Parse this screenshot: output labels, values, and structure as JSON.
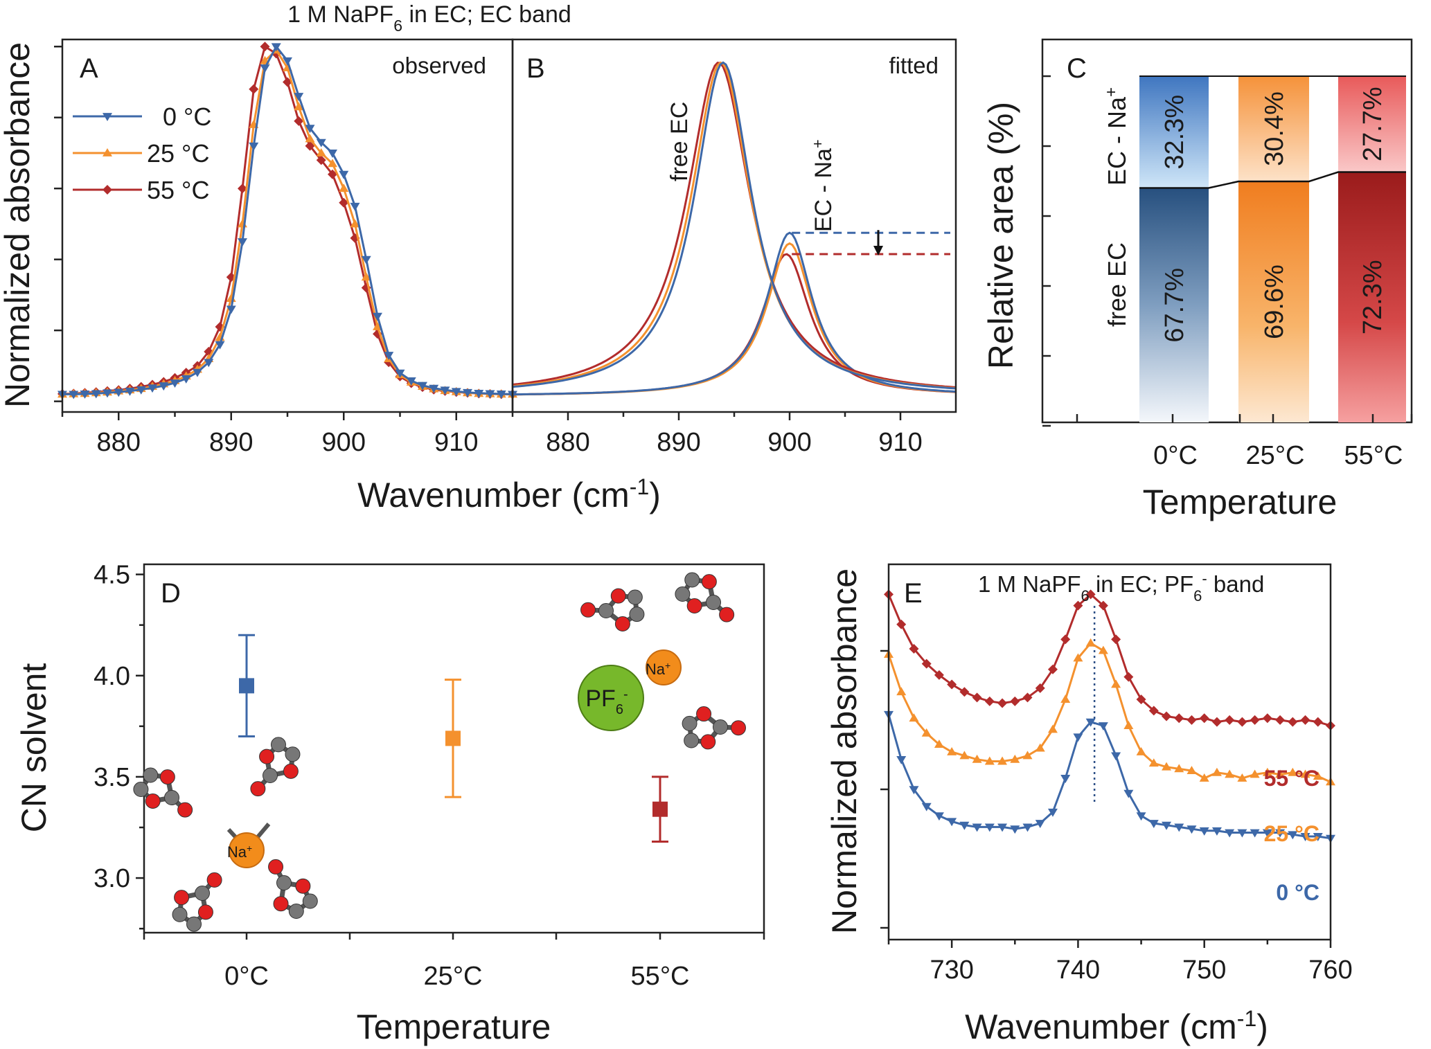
{
  "colors": {
    "c0": "#3d68a8",
    "c25": "#f4912e",
    "c55": "#b22c2c",
    "green": "#77b82b",
    "grey": "#777777",
    "red": "#e02020",
    "orange": "#f28c1b"
  },
  "chart_data": [
    {
      "id": "A",
      "type": "line",
      "panel_label": "A",
      "title": "1 M NaPF6 in EC; EC band",
      "title_main": "1 M NaPF",
      "title_sub": "6",
      "title_tail": " in EC; EC band",
      "corner_label": "observed",
      "xlabel": "Wavenumber (cm-1)",
      "xlabel_main": "Wavenumber (cm",
      "xlabel_sup": "-1",
      "xlabel_tail": ")",
      "ylabel": "Normalized absorbance",
      "xlim": [
        875,
        915
      ],
      "ylim": [
        -0.03,
        1.02
      ],
      "xticks": [
        "880",
        "890",
        "900",
        "910"
      ],
      "legend": [
        "0 °C",
        "25 °C",
        "55 °C"
      ],
      "series": [
        {
          "name": "0 °C",
          "marker": "triangle-down",
          "color": "#3d68a8",
          "x": [
            875,
            876,
            877,
            878,
            879,
            880,
            881,
            882,
            883,
            884,
            885,
            886,
            887,
            888,
            889,
            890,
            891,
            892,
            893,
            894,
            895,
            896,
            897,
            898,
            899,
            900,
            901,
            902,
            903,
            904,
            905,
            906,
            907,
            908,
            909,
            910,
            911,
            912,
            913,
            914,
            915
          ],
          "y": [
            0.02,
            0.02,
            0.021,
            0.022,
            0.024,
            0.026,
            0.029,
            0.033,
            0.038,
            0.044,
            0.052,
            0.064,
            0.082,
            0.11,
            0.16,
            0.26,
            0.45,
            0.72,
            0.94,
            1.0,
            0.96,
            0.86,
            0.77,
            0.73,
            0.7,
            0.64,
            0.55,
            0.4,
            0.24,
            0.13,
            0.08,
            0.058,
            0.045,
            0.037,
            0.032,
            0.028,
            0.025,
            0.023,
            0.022,
            0.021,
            0.02
          ]
        },
        {
          "name": "25 °C",
          "marker": "triangle-up",
          "color": "#f4912e",
          "x": [
            875,
            876,
            877,
            878,
            879,
            880,
            881,
            882,
            883,
            884,
            885,
            886,
            887,
            888,
            889,
            890,
            891,
            892,
            893,
            894,
            895,
            896,
            897,
            898,
            899,
            900,
            901,
            902,
            903,
            904,
            905,
            906,
            907,
            908,
            909,
            910,
            911,
            912,
            913,
            914,
            915
          ],
          "y": [
            0.02,
            0.021,
            0.022,
            0.024,
            0.026,
            0.029,
            0.032,
            0.036,
            0.042,
            0.049,
            0.058,
            0.071,
            0.09,
            0.12,
            0.18,
            0.29,
            0.5,
            0.78,
            0.96,
            0.99,
            0.94,
            0.83,
            0.74,
            0.7,
            0.67,
            0.6,
            0.5,
            0.35,
            0.21,
            0.12,
            0.075,
            0.054,
            0.042,
            0.035,
            0.03,
            0.027,
            0.024,
            0.022,
            0.021,
            0.02,
            0.02
          ]
        },
        {
          "name": "55 °C",
          "marker": "diamond",
          "color": "#b22c2c",
          "x": [
            875,
            876,
            877,
            878,
            879,
            880,
            881,
            882,
            883,
            884,
            885,
            886,
            887,
            888,
            889,
            890,
            891,
            892,
            893,
            894,
            895,
            896,
            897,
            898,
            899,
            900,
            901,
            902,
            903,
            904,
            905,
            906,
            907,
            908,
            909,
            910,
            911,
            912,
            913,
            914,
            915
          ],
          "y": [
            0.021,
            0.022,
            0.024,
            0.026,
            0.029,
            0.032,
            0.036,
            0.041,
            0.047,
            0.055,
            0.066,
            0.081,
            0.1,
            0.14,
            0.21,
            0.35,
            0.6,
            0.88,
            1.0,
            0.98,
            0.9,
            0.79,
            0.72,
            0.68,
            0.64,
            0.56,
            0.46,
            0.32,
            0.19,
            0.11,
            0.07,
            0.051,
            0.04,
            0.033,
            0.029,
            0.026,
            0.024,
            0.022,
            0.021,
            0.02,
            0.02
          ]
        }
      ]
    },
    {
      "id": "B",
      "type": "line",
      "panel_label": "B",
      "corner_label": "fitted",
      "xlim": [
        875,
        915
      ],
      "ylim": [
        -0.03,
        1.02
      ],
      "xticks": [
        "880",
        "890",
        "900",
        "910"
      ],
      "annotations": {
        "free": "free EC",
        "bound": "EC - Na",
        "bound_sup": "+"
      },
      "series": [
        {
          "name": "0 °C free EC",
          "color": "#3d68a8",
          "center": 894.0,
          "height": 0.94,
          "width": 3.2
        },
        {
          "name": "25 °C free EC",
          "color": "#f4912e",
          "center": 893.8,
          "height": 0.94,
          "width": 3.3
        },
        {
          "name": "55 °C free EC",
          "color": "#b22c2c",
          "center": 893.6,
          "height": 0.94,
          "width": 3.5
        },
        {
          "name": "0 °C EC-Na+",
          "color": "#3d68a8",
          "center": 900.0,
          "height": 0.46,
          "width": 2.5
        },
        {
          "name": "25 °C EC-Na+",
          "color": "#f4912e",
          "center": 900.0,
          "height": 0.43,
          "width": 2.5
        },
        {
          "name": "55 °C EC-Na+",
          "color": "#b22c2c",
          "center": 899.7,
          "height": 0.4,
          "width": 2.6
        }
      ]
    },
    {
      "id": "C",
      "type": "bar",
      "stacked": true,
      "panel_label": "C",
      "xlabel": "Temperature",
      "ylabel": "Relative area (%)",
      "categories": [
        "0°C",
        "25°C",
        "55°C"
      ],
      "row_labels": {
        "top": "EC - Na",
        "top_sup": "+",
        "bottom": "free EC"
      },
      "series": [
        {
          "name": "free EC",
          "values": [
            67.7,
            69.6,
            72.3
          ],
          "labels": [
            "67.7%",
            "69.6%",
            "72.3%"
          ]
        },
        {
          "name": "EC - Na+",
          "values": [
            32.3,
            30.4,
            27.7
          ],
          "labels": [
            "32.3%",
            "30.4%",
            "27.7%"
          ]
        }
      ],
      "ylim": [
        0,
        100
      ]
    },
    {
      "id": "D",
      "type": "scatter",
      "panel_label": "D",
      "xlabel": "Temperature",
      "ylabel": "CN solvent",
      "categories": [
        "0°C",
        "25°C",
        "55°C"
      ],
      "values": [
        3.95,
        3.69,
        3.34
      ],
      "err_low": [
        3.7,
        3.4,
        3.18
      ],
      "err_high": [
        4.2,
        3.98,
        3.5
      ],
      "ylim": [
        2.73,
        4.55
      ],
      "yticks": [
        "3.0",
        "3.5",
        "4.0",
        "4.5"
      ],
      "molecule_labels": {
        "na": "Na",
        "na_sup": "+",
        "pf": "PF",
        "pf_sub": "6",
        "pf_sup": "-"
      }
    },
    {
      "id": "E",
      "type": "line",
      "panel_label": "E",
      "title": "1 M NaPF6 in EC; PF6- band",
      "t1": "1 M NaPF",
      "t1_sub": "6",
      "t2": " in EC; PF",
      "t2_sub": "6",
      "t2_sup": "-",
      "t3": " band",
      "xlabel": "Wavenumber (cm-1)",
      "xlabel_main": "Wavenumber (cm",
      "xlabel_sup": "-1",
      "xlabel_tail": ")",
      "ylabel": "Normalized absorbance",
      "xlim": [
        725,
        760
      ],
      "ylim": [
        0,
        1
      ],
      "xticks": [
        "730",
        "740",
        "750",
        "760"
      ],
      "marker_line_x": 741.3,
      "series": [
        {
          "name": "55 °C",
          "color": "#b22c2c",
          "marker": "diamond",
          "x": [
            725,
            726,
            727,
            728,
            729,
            730,
            731,
            732,
            733,
            734,
            735,
            736,
            737,
            738,
            739,
            740,
            741,
            742,
            743,
            744,
            745,
            746,
            747,
            748,
            749,
            750,
            751,
            752,
            753,
            754,
            755,
            756,
            757,
            758,
            759,
            760
          ],
          "y": [
            0.92,
            0.84,
            0.775,
            0.735,
            0.705,
            0.68,
            0.66,
            0.645,
            0.635,
            0.63,
            0.635,
            0.645,
            0.67,
            0.72,
            0.8,
            0.89,
            0.92,
            0.89,
            0.8,
            0.7,
            0.64,
            0.61,
            0.595,
            0.59,
            0.585,
            0.59,
            0.58,
            0.585,
            0.58,
            0.585,
            0.59,
            0.585,
            0.58,
            0.585,
            0.58,
            0.57
          ]
        },
        {
          "name": "25 °C",
          "color": "#f4912e",
          "marker": "triangle-up",
          "x": [
            725,
            726,
            727,
            728,
            729,
            730,
            731,
            732,
            733,
            734,
            735,
            736,
            737,
            738,
            739,
            740,
            741,
            742,
            743,
            744,
            745,
            746,
            747,
            748,
            749,
            750,
            751,
            752,
            753,
            754,
            755,
            756,
            757,
            758,
            759,
            760
          ],
          "y": [
            0.76,
            0.66,
            0.59,
            0.55,
            0.52,
            0.5,
            0.49,
            0.48,
            0.475,
            0.475,
            0.48,
            0.49,
            0.51,
            0.56,
            0.64,
            0.75,
            0.79,
            0.77,
            0.68,
            0.57,
            0.5,
            0.47,
            0.46,
            0.455,
            0.45,
            0.43,
            0.445,
            0.44,
            0.43,
            0.44,
            0.445,
            0.44,
            0.445,
            0.44,
            0.435,
            0.42
          ]
        },
        {
          "name": "0 °C",
          "color": "#3d68a8",
          "marker": "triangle-down",
          "x": [
            725,
            726,
            727,
            728,
            729,
            730,
            731,
            732,
            733,
            734,
            735,
            736,
            737,
            738,
            739,
            740,
            741,
            742,
            743,
            744,
            745,
            746,
            747,
            748,
            749,
            750,
            751,
            752,
            753,
            754,
            755,
            756,
            757,
            758,
            759,
            760
          ],
          "y": [
            0.6,
            0.48,
            0.4,
            0.355,
            0.33,
            0.315,
            0.305,
            0.3,
            0.3,
            0.3,
            0.295,
            0.3,
            0.31,
            0.34,
            0.43,
            0.54,
            0.58,
            0.57,
            0.49,
            0.39,
            0.33,
            0.31,
            0.305,
            0.3,
            0.295,
            0.29,
            0.29,
            0.285,
            0.285,
            0.285,
            0.285,
            0.285,
            0.28,
            0.275,
            0.275,
            0.27
          ]
        }
      ],
      "series_labels": [
        "55 °C",
        "25 °C",
        "0 °C"
      ]
    }
  ]
}
